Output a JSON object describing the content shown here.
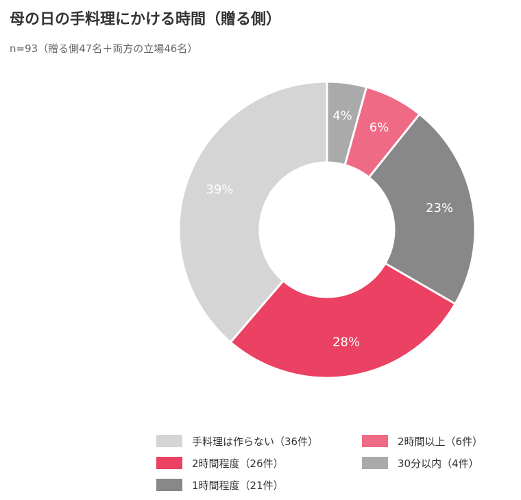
{
  "title": "母の日の手料理にかける時間（贈る側）",
  "subtitle": "n=93（贈る側47名＋両方の立場46名）",
  "chart_data": {
    "type": "pie",
    "donut": true,
    "unit": "%",
    "slices": [
      {
        "label": "30分以内（4件）",
        "count": 4,
        "percent": 4,
        "color": "#aaaaaa"
      },
      {
        "label": "2時間以上（6件）",
        "count": 6,
        "percent": 6,
        "color": "#ef6a84"
      },
      {
        "label": "1時間程度（21件）",
        "count": 21,
        "percent": 23,
        "color": "#888888"
      },
      {
        "label": "2時間程度（26件）",
        "count": 26,
        "percent": 28,
        "color": "#eb4162"
      },
      {
        "label": "手料理は作らない（36件）",
        "count": 36,
        "percent": 39,
        "color": "#d5d5d5"
      }
    ],
    "legend": {
      "placement": "bottom",
      "order": [
        4,
        1,
        3,
        0,
        2
      ]
    }
  }
}
